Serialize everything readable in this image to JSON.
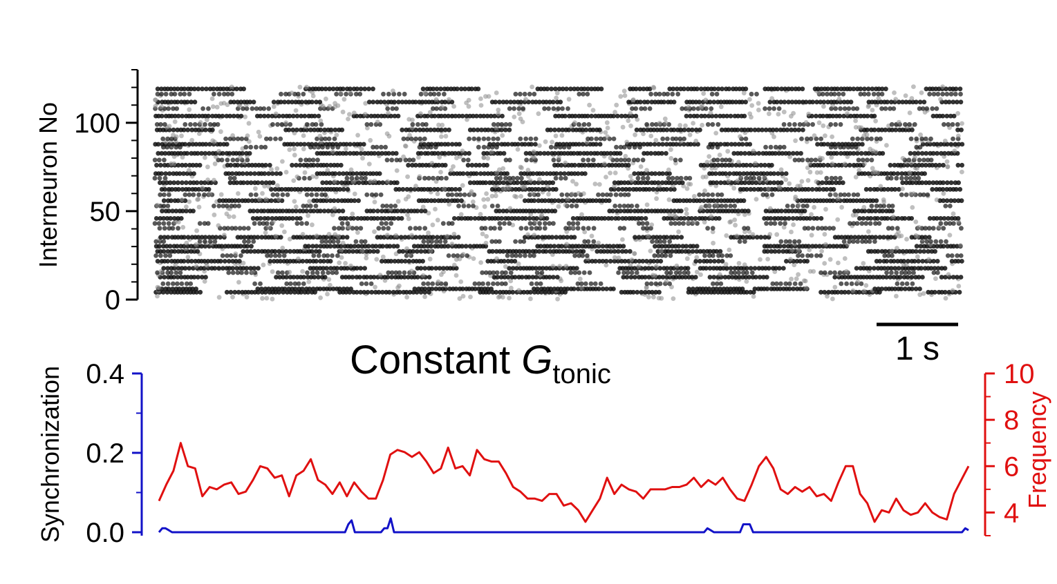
{
  "title": {
    "main": "Constant ",
    "italic": "G",
    "subscript": "tonic"
  },
  "raster": {
    "ylabel": "Interneuron No",
    "yticks": [
      "0",
      "50",
      "100"
    ],
    "ytick_values": [
      0,
      50,
      100
    ],
    "ylim": [
      0,
      130
    ],
    "n_neurons": 120,
    "duration_s": 10,
    "scalebar": {
      "label": "1 s",
      "value_s": 1
    },
    "colors": {
      "tonic": "#111111",
      "sparse": "#8a8a8a"
    }
  },
  "chart_data": [
    {
      "type": "scatter",
      "name": "raster",
      "ylabel": "Interneuron No",
      "ylim": [
        0,
        130
      ],
      "yticks": [
        0,
        50,
        100
      ],
      "duration_s": 10,
      "tonic_rows": [
        4,
        6,
        13,
        18,
        22,
        27,
        30,
        35,
        46,
        50,
        56,
        62,
        66,
        71,
        76,
        83,
        88,
        96,
        104,
        112,
        119
      ],
      "bursty_rows": [
        9,
        15,
        25,
        33,
        40,
        43,
        53,
        59,
        69,
        79,
        86,
        91,
        99,
        108,
        116
      ]
    },
    {
      "type": "line",
      "name": "sync-and-frequency",
      "x_duration_s": 10,
      "series": [
        {
          "axis": "left",
          "color": "#1212c8",
          "values": [
            0,
            0.01,
            0.01,
            0.005,
            0,
            0,
            0,
            0,
            0,
            0,
            0,
            0,
            0,
            0,
            0,
            0,
            0,
            0,
            0,
            0,
            0,
            0,
            0,
            0,
            0,
            0,
            0,
            0,
            0,
            0,
            0,
            0,
            0,
            0,
            0,
            0,
            0,
            0,
            0,
            0,
            0,
            0,
            0,
            0,
            0,
            0,
            0,
            0,
            0,
            0,
            0,
            0,
            0,
            0,
            0,
            0,
            0,
            0,
            0.02,
            0.03,
            0,
            0,
            0,
            0,
            0,
            0,
            0,
            0,
            0,
            0.01,
            0.01,
            0.035,
            0,
            0,
            0,
            0,
            0,
            0,
            0,
            0,
            0,
            0,
            0,
            0,
            0,
            0,
            0,
            0,
            0,
            0,
            0,
            0,
            0,
            0,
            0,
            0,
            0,
            0,
            0,
            0,
            0,
            0,
            0,
            0,
            0,
            0,
            0,
            0,
            0,
            0,
            0,
            0,
            0,
            0,
            0,
            0,
            0,
            0,
            0,
            0,
            0,
            0,
            0,
            0,
            0,
            0,
            0,
            0,
            0,
            0,
            0,
            0,
            0,
            0,
            0,
            0,
            0,
            0,
            0,
            0,
            0,
            0,
            0,
            0,
            0,
            0,
            0,
            0,
            0,
            0,
            0,
            0,
            0,
            0,
            0,
            0,
            0,
            0,
            0,
            0,
            0,
            0,
            0,
            0,
            0,
            0,
            0,
            0,
            0.01,
            0.005,
            0,
            0,
            0,
            0,
            0,
            0,
            0,
            0,
            0,
            0.02,
            0.02,
            0.02,
            0,
            0,
            0,
            0,
            0,
            0,
            0,
            0,
            0,
            0,
            0,
            0,
            0,
            0,
            0,
            0,
            0,
            0,
            0,
            0,
            0,
            0,
            0,
            0,
            0,
            0,
            0,
            0,
            0,
            0,
            0,
            0,
            0,
            0,
            0,
            0,
            0,
            0,
            0,
            0,
            0,
            0,
            0,
            0,
            0,
            0,
            0,
            0,
            0,
            0,
            0,
            0,
            0,
            0,
            0,
            0,
            0,
            0,
            0,
            0,
            0,
            0,
            0,
            0,
            0,
            0.01,
            0.005
          ]
        },
        {
          "axis": "right",
          "color": "#e01010",
          "values": [
            4.5,
            5.2,
            5.8,
            7.0,
            6.0,
            5.9,
            4.7,
            5.1,
            5.0,
            5.2,
            5.3,
            4.8,
            4.9,
            5.4,
            6.0,
            5.9,
            5.5,
            5.6,
            4.7,
            5.6,
            5.8,
            6.3,
            5.4,
            5.2,
            4.8,
            5.3,
            4.7,
            5.3,
            4.9,
            4.6,
            4.6,
            5.4,
            6.5,
            6.7,
            6.6,
            6.4,
            6.6,
            6.2,
            5.7,
            5.9,
            6.8,
            5.9,
            6.0,
            5.6,
            6.7,
            6.3,
            6.2,
            6.2,
            5.7,
            5.1,
            4.9,
            4.6,
            4.6,
            4.5,
            4.8,
            4.8,
            4.3,
            4.4,
            4.1,
            3.6,
            4.1,
            4.6,
            5.5,
            4.8,
            5.2,
            5.0,
            4.9,
            4.6,
            5.0,
            5.0,
            5.0,
            5.1,
            5.1,
            5.2,
            5.5,
            5.1,
            5.4,
            5.2,
            5.5,
            5.0,
            4.6,
            4.5,
            5.2,
            6.0,
            6.4,
            5.9,
            5.0,
            4.8,
            5.1,
            4.9,
            5.1,
            4.7,
            4.8,
            4.5,
            5.3,
            6.0,
            6.0,
            4.8,
            4.4,
            3.6,
            4.1,
            4.0,
            4.6,
            4.1,
            3.9,
            4.0,
            4.4,
            4.0,
            3.8,
            3.7,
            4.8,
            5.4,
            6.0
          ]
        }
      ],
      "left_axis": {
        "label": "Synchronization",
        "ylim": [
          0,
          0.4
        ],
        "ticks": [
          0.0,
          0.2,
          0.4
        ],
        "tick_labels": [
          "0.0",
          "0.2",
          "0.4"
        ]
      },
      "right_axis": {
        "label": "Frequency",
        "ylim": [
          3,
          10
        ],
        "ticks": [
          4,
          6,
          8,
          10
        ],
        "tick_labels": [
          "4",
          "6",
          "8",
          "10"
        ]
      }
    }
  ]
}
